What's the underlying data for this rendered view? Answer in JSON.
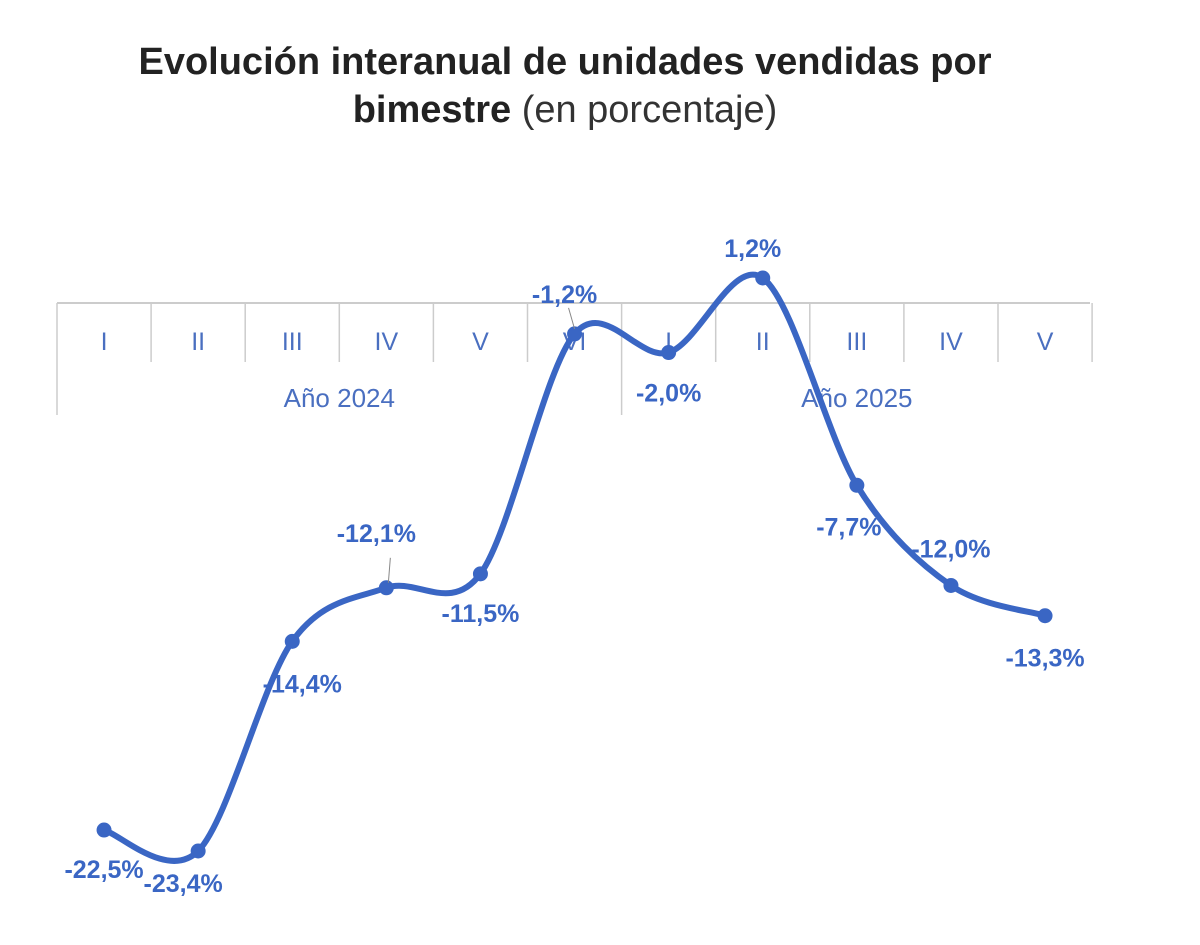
{
  "title": {
    "main_line1": "Evolución interanual de unidades vendidas por",
    "main_line2": "bimestre",
    "suffix": "(en porcentaje)"
  },
  "colors": {
    "line": "#3a66c4",
    "axis": "#cccccc",
    "text": "#4a6fc0"
  },
  "chart_data": {
    "type": "line",
    "title": "Evolución interanual de unidades vendidas por bimestre (en porcentaje)",
    "xlabel": "",
    "ylabel": "",
    "groups": [
      {
        "label": "Año 2024",
        "categories": [
          "I",
          "II",
          "III",
          "IV",
          "V",
          "VI"
        ]
      },
      {
        "label": "Año 2025",
        "categories": [
          "I",
          "II",
          "III",
          "IV",
          "V"
        ]
      }
    ],
    "series": [
      {
        "values": [
          -22.5,
          -23.4,
          -14.4,
          -12.1,
          -11.5,
          -1.2,
          -2.0,
          1.2,
          -7.7,
          -12.0,
          -13.3
        ],
        "labels": [
          "-22,5%",
          "-23,4%",
          "-14,4%",
          "-12,1%",
          "-11,5%",
          "-1,2%",
          "-2,0%",
          "1,2%",
          "-7,7%",
          "-12,0%",
          "-13,3%"
        ]
      }
    ],
    "ylim": [
      -23.4,
      1.2
    ],
    "grid": false
  }
}
